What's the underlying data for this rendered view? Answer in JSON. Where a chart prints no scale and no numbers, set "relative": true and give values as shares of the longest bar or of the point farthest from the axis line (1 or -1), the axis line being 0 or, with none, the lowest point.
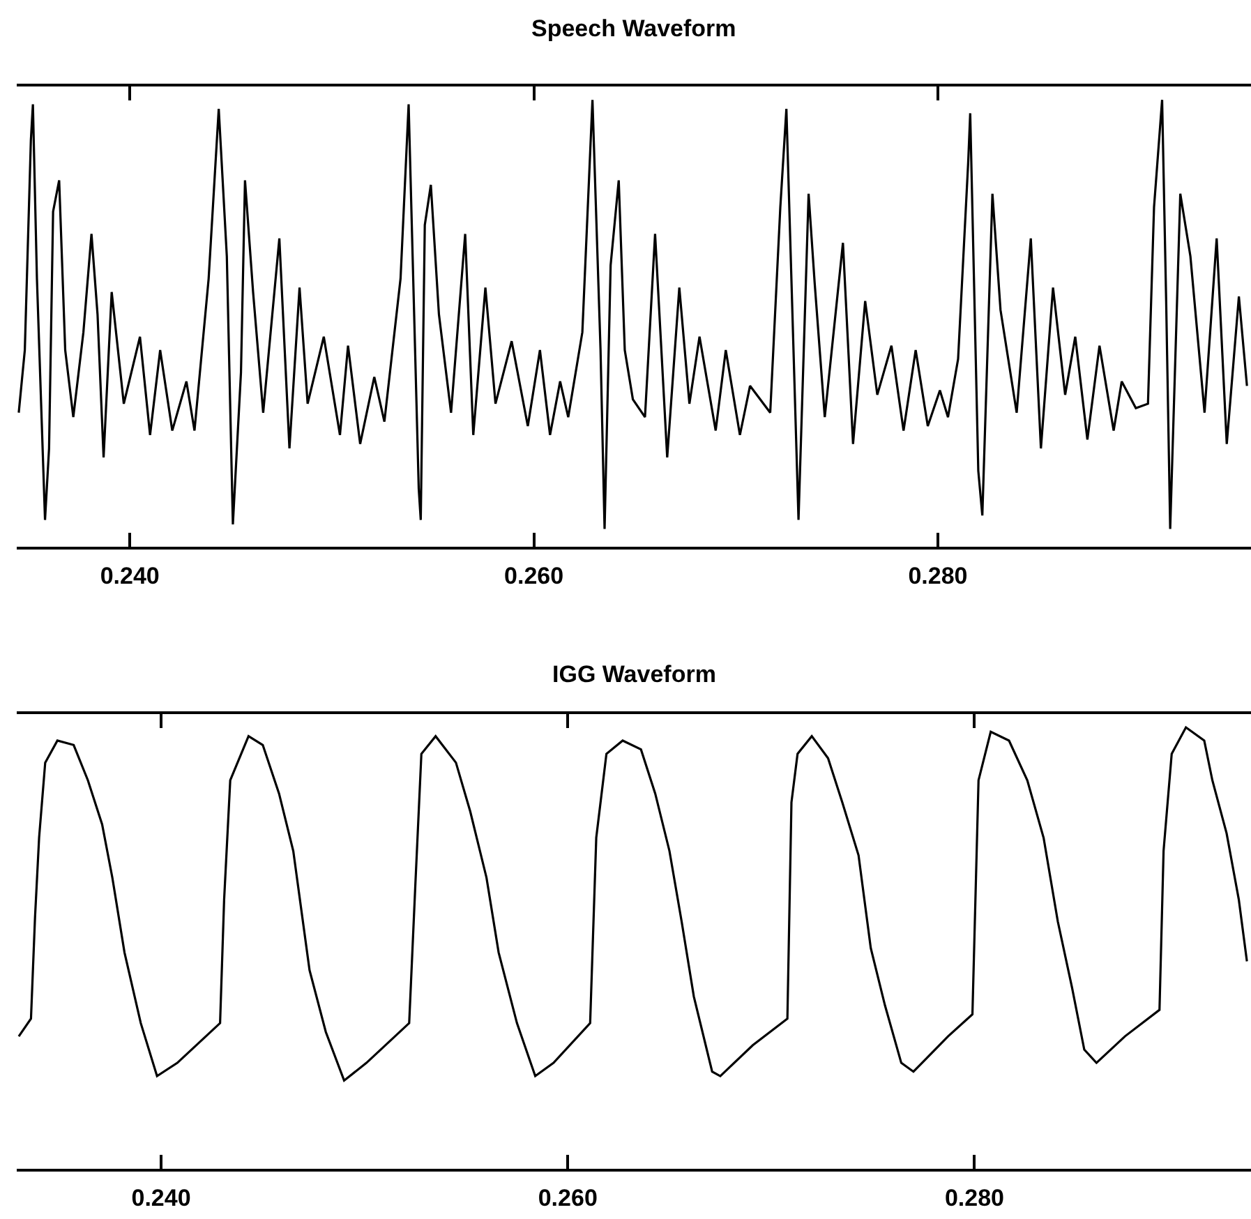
{
  "chart_data": [
    {
      "type": "line",
      "title": "Speech Waveform",
      "relative": true,
      "marker": "none",
      "line_style": "solid",
      "xlim": [
        0.2344,
        0.2955
      ],
      "xticks": [
        {
          "value": 0.24,
          "label": "0.240"
        },
        {
          "value": 0.26,
          "label": "0.260"
        },
        {
          "value": 0.28,
          "label": "0.280"
        }
      ],
      "series": [
        {
          "color": "#000000",
          "x": [
            0.2345,
            0.2348,
            0.2351,
            0.2352,
            0.2354,
            0.2358,
            0.236,
            0.2362,
            0.2365,
            0.2368,
            0.2372,
            0.2377,
            0.2381,
            0.2384,
            0.2387,
            0.2391,
            0.2397,
            0.2405,
            0.241,
            0.2415,
            0.2421,
            0.2428,
            0.2432,
            0.2439,
            0.2444,
            0.2448,
            0.2451,
            0.2455,
            0.2457,
            0.2461,
            0.2466,
            0.2474,
            0.2479,
            0.2484,
            0.2488,
            0.2496,
            0.2504,
            0.2508,
            0.2514,
            0.2521,
            0.2526,
            0.2534,
            0.2538,
            0.2543,
            0.2544,
            0.2546,
            0.2549,
            0.2553,
            0.2559,
            0.2566,
            0.257,
            0.2576,
            0.2581,
            0.2589,
            0.2597,
            0.2603,
            0.2608,
            0.2613,
            0.2617,
            0.2624,
            0.2629,
            0.2633,
            0.2635,
            0.2638,
            0.2642,
            0.2645,
            0.2649,
            0.2655,
            0.266,
            0.2666,
            0.2672,
            0.2677,
            0.2682,
            0.269,
            0.2695,
            0.2702,
            0.2707,
            0.2717,
            0.2722,
            0.2725,
            0.2731,
            0.2736,
            0.2739,
            0.2744,
            0.2753,
            0.2758,
            0.2764,
            0.277,
            0.2777,
            0.2783,
            0.2789,
            0.2795,
            0.2801,
            0.2805,
            0.281,
            0.2815,
            0.2816,
            0.282,
            0.2822,
            0.2827,
            0.2831,
            0.2839,
            0.2846,
            0.2851,
            0.2857,
            0.2863,
            0.2868,
            0.2874,
            0.288,
            0.2887,
            0.2891,
            0.2898,
            0.2904,
            0.2907,
            0.2911,
            0.2913,
            0.2915,
            0.292,
            0.2925,
            0.2932,
            0.2938,
            0.2943,
            0.2949,
            0.2953
          ],
          "values": [
            0.3,
            0.44,
            0.91,
            0.99,
            0.6,
            0.06,
            0.22,
            0.75,
            0.82,
            0.44,
            0.29,
            0.48,
            0.7,
            0.52,
            0.2,
            0.57,
            0.32,
            0.47,
            0.25,
            0.44,
            0.26,
            0.37,
            0.26,
            0.6,
            0.98,
            0.65,
            0.05,
            0.39,
            0.82,
            0.57,
            0.3,
            0.69,
            0.22,
            0.58,
            0.32,
            0.47,
            0.25,
            0.45,
            0.23,
            0.38,
            0.28,
            0.6,
            0.99,
            0.13,
            0.06,
            0.72,
            0.81,
            0.52,
            0.3,
            0.7,
            0.25,
            0.58,
            0.32,
            0.46,
            0.27,
            0.44,
            0.25,
            0.37,
            0.29,
            0.48,
            1.0,
            0.44,
            0.04,
            0.63,
            0.82,
            0.44,
            0.33,
            0.29,
            0.7,
            0.2,
            0.58,
            0.32,
            0.47,
            0.26,
            0.44,
            0.25,
            0.36,
            0.3,
            0.76,
            0.98,
            0.06,
            0.79,
            0.59,
            0.29,
            0.68,
            0.23,
            0.55,
            0.34,
            0.45,
            0.26,
            0.44,
            0.27,
            0.35,
            0.29,
            0.42,
            0.86,
            0.97,
            0.17,
            0.07,
            0.79,
            0.53,
            0.3,
            0.69,
            0.22,
            0.58,
            0.34,
            0.47,
            0.24,
            0.45,
            0.26,
            0.37,
            0.31,
            0.32,
            0.76,
            1.0,
            0.55,
            0.04,
            0.79,
            0.65,
            0.3,
            0.69,
            0.23,
            0.56,
            0.36
          ]
        }
      ]
    },
    {
      "type": "line",
      "title": "IGG Waveform",
      "relative": true,
      "marker": "none",
      "line_style": "solid",
      "xlim": [
        0.2329,
        0.2936
      ],
      "xticks": [
        {
          "value": 0.24,
          "label": "0.240"
        },
        {
          "value": 0.26,
          "label": "0.260"
        },
        {
          "value": 0.28,
          "label": "0.280"
        }
      ],
      "series": [
        {
          "color": "#000000",
          "x": [
            0.233,
            0.2336,
            0.2338,
            0.234,
            0.2343,
            0.2349,
            0.2357,
            0.2364,
            0.2371,
            0.2376,
            0.2382,
            0.239,
            0.2398,
            0.2408,
            0.2429,
            0.2431,
            0.2434,
            0.2443,
            0.245,
            0.2458,
            0.2465,
            0.2473,
            0.2481,
            0.249,
            0.2501,
            0.2522,
            0.2525,
            0.2528,
            0.2535,
            0.2545,
            0.2552,
            0.256,
            0.2566,
            0.2575,
            0.2584,
            0.2593,
            0.2611,
            0.2614,
            0.2619,
            0.2627,
            0.2636,
            0.2643,
            0.265,
            0.2656,
            0.2662,
            0.2671,
            0.2675,
            0.2691,
            0.2708,
            0.271,
            0.2713,
            0.272,
            0.2728,
            0.2735,
            0.2743,
            0.2749,
            0.2756,
            0.2764,
            0.277,
            0.2787,
            0.2799,
            0.2802,
            0.2808,
            0.2817,
            0.2826,
            0.2834,
            0.2841,
            0.2848,
            0.2854,
            0.286,
            0.2874,
            0.2891,
            0.2893,
            0.2897,
            0.2904,
            0.2913,
            0.2917,
            0.2924,
            0.293,
            0.2934
          ],
          "values": [
            0.3,
            0.34,
            0.57,
            0.75,
            0.92,
            0.97,
            0.96,
            0.88,
            0.78,
            0.66,
            0.49,
            0.33,
            0.21,
            0.24,
            0.33,
            0.61,
            0.88,
            0.98,
            0.96,
            0.85,
            0.72,
            0.45,
            0.31,
            0.2,
            0.24,
            0.33,
            0.64,
            0.94,
            0.98,
            0.92,
            0.81,
            0.66,
            0.49,
            0.33,
            0.21,
            0.24,
            0.33,
            0.75,
            0.94,
            0.97,
            0.95,
            0.85,
            0.72,
            0.56,
            0.39,
            0.22,
            0.21,
            0.28,
            0.34,
            0.83,
            0.94,
            0.98,
            0.93,
            0.83,
            0.71,
            0.5,
            0.37,
            0.24,
            0.22,
            0.3,
            0.35,
            0.88,
            0.99,
            0.97,
            0.88,
            0.75,
            0.56,
            0.41,
            0.27,
            0.24,
            0.3,
            0.36,
            0.72,
            0.94,
            1.0,
            0.97,
            0.88,
            0.76,
            0.61,
            0.47
          ]
        }
      ]
    }
  ]
}
